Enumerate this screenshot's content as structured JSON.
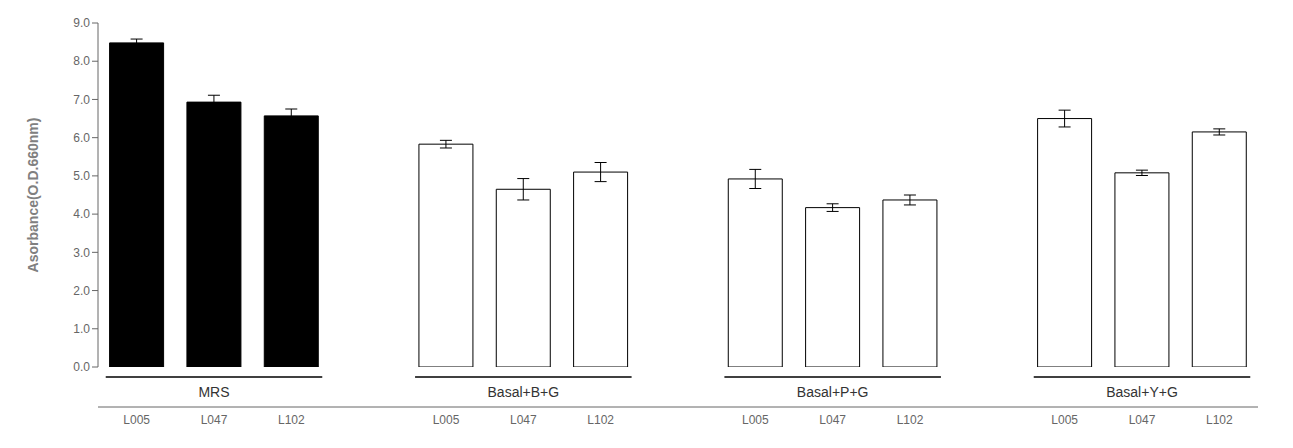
{
  "chart_data": {
    "type": "bar",
    "ylabel": "Asorbance(O.D.660nm)",
    "categories": [
      "L005",
      "L047",
      "L102"
    ],
    "groups": [
      {
        "name": "MRS",
        "color": "#000000",
        "values": [
          8.48,
          6.93,
          6.57
        ],
        "errors": [
          0.1,
          0.18,
          0.18
        ]
      },
      {
        "name": "Basal+B+G",
        "color": "#ffffff",
        "values": [
          5.83,
          4.65,
          5.1
        ],
        "errors": [
          0.1,
          0.28,
          0.25
        ]
      },
      {
        "name": "Basal+P+G",
        "color": "#ffffff",
        "values": [
          4.92,
          4.17,
          4.37
        ],
        "errors": [
          0.25,
          0.1,
          0.13
        ]
      },
      {
        "name": "Basal+Y+G",
        "color": "#ffffff",
        "values": [
          6.5,
          5.08,
          6.15
        ],
        "errors": [
          0.22,
          0.07,
          0.08
        ]
      }
    ],
    "edge_color": "#000000",
    "ylim": [
      0.0,
      9.0
    ],
    "yticks": [
      {
        "value": 0,
        "label": "0.0"
      },
      {
        "value": 1,
        "label": "1.0"
      },
      {
        "value": 2,
        "label": "2.0"
      },
      {
        "value": 3,
        "label": "3.0"
      },
      {
        "value": 4,
        "label": "4.0"
      },
      {
        "value": 5,
        "label": "5.0"
      },
      {
        "value": 6,
        "label": "6.0"
      },
      {
        "value": 7,
        "label": "7.0"
      },
      {
        "value": 8,
        "label": "8.0"
      },
      {
        "value": 9,
        "label": "9.0"
      }
    ],
    "grid": false
  }
}
